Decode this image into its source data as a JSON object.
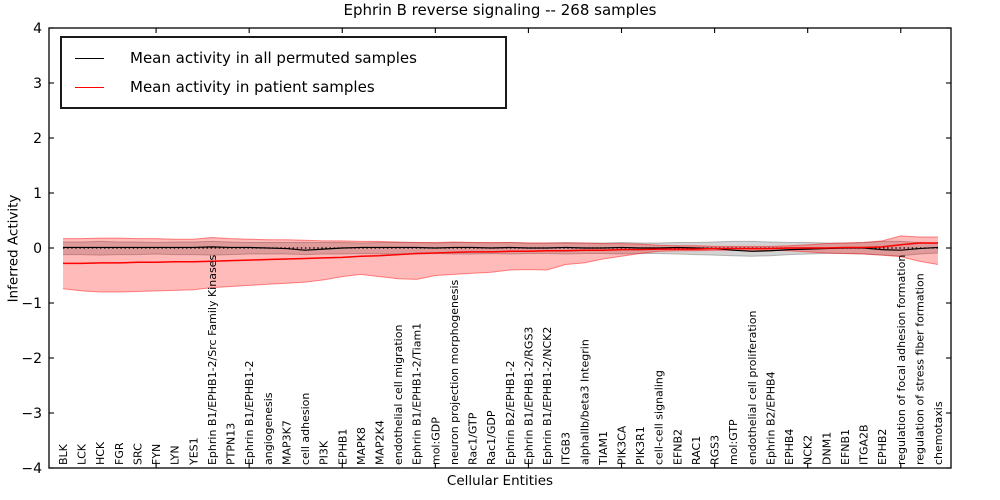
{
  "chart_data": {
    "type": "line",
    "title": "Ephrin B reverse signaling -- 268 samples",
    "xlabel": "Cellular Entities",
    "ylabel": "Inferred Activity",
    "ylim": [
      -4,
      4
    ],
    "yticks": [
      4,
      3,
      2,
      1,
      0,
      -1,
      -2,
      -3,
      -4
    ],
    "ytick_labels": [
      "4",
      "3",
      "2",
      "1",
      "0",
      "−1",
      "−2",
      "−3",
      "−4"
    ],
    "grid": false,
    "legend_position": "upper left",
    "zero_line": {
      "style": "dotted",
      "color": "#000000",
      "value": 0
    },
    "categories": [
      "BLK",
      "LCK",
      "HCK",
      "FGR",
      "SRC",
      "FYN",
      "LYN",
      "YES1",
      "Ephrin B1/EPHB1-2/Src Family Kinases",
      "PTPN13",
      "Ephrin B1/EPHB1-2",
      "angiogenesis",
      "MAP3K7",
      "cell adhesion",
      "PI3K",
      "EPHB1",
      "MAPK8",
      "MAP2K4",
      "endothelial cell migration",
      "Ephrin B1/EPHB1-2/Tiam1",
      "mol:GDP",
      "neuron projection morphogenesis",
      "Rac1/GTP",
      "Rac1/GDP",
      "Ephrin B2/EPHB1-2",
      "Ephrin B1/EPHB1-2/RGS3",
      "Ephrin B1/EPHB1-2/NCK2",
      "ITGB3",
      "alphaIIb/beta3 Integrin",
      "TIAM1",
      "PIK3CA",
      "PIK3R1",
      "cell-cell signaling",
      "EFNB2",
      "RAC1",
      "RGS3",
      "mol:GTP",
      "endothelial cell proliferation",
      "Ephrin B2/EPHB4",
      "EPHB4",
      "NCK2",
      "DNM1",
      "EFNB1",
      "ITGA2B",
      "EPHB2",
      "regulation of focal adhesion formation",
      "regulation of stress fiber formation",
      "chemotaxis"
    ],
    "series": [
      {
        "name": "Mean activity in all permuted samples",
        "color": "#000000",
        "values": [
          0.01,
          0.01,
          0.01,
          0.01,
          0.01,
          0.01,
          0.01,
          0.01,
          0.02,
          0.01,
          0.01,
          0,
          -0.01,
          -0.04,
          -0.02,
          0,
          0.01,
          0.01,
          0.01,
          0.01,
          0,
          0.01,
          0.01,
          0,
          0.01,
          0,
          0,
          0.01,
          0,
          0,
          0.01,
          0,
          0,
          0.01,
          0,
          -0.01,
          -0.04,
          -0.06,
          -0.05,
          -0.03,
          -0.02,
          -0.01,
          0,
          0,
          -0.03,
          -0.04,
          -0.01,
          0.01
        ]
      },
      {
        "name": "Mean activity in patient samples",
        "color": "#ff0000",
        "values": [
          -0.28,
          -0.28,
          -0.27,
          -0.27,
          -0.26,
          -0.26,
          -0.25,
          -0.25,
          -0.24,
          -0.23,
          -0.22,
          -0.21,
          -0.2,
          -0.19,
          -0.18,
          -0.17,
          -0.15,
          -0.14,
          -0.12,
          -0.1,
          -0.09,
          -0.08,
          -0.07,
          -0.07,
          -0.06,
          -0.06,
          -0.05,
          -0.05,
          -0.04,
          -0.04,
          -0.03,
          -0.03,
          -0.02,
          -0.02,
          -0.02,
          -0.01,
          -0.01,
          -0.01,
          -0.01,
          0,
          0,
          0,
          0.01,
          0.01,
          0.02,
          0.06,
          0.09,
          0.09
        ]
      }
    ],
    "bands": [
      {
        "name": "Permuted samples activity range",
        "fill": "rgba(128,128,128,0.35)",
        "edge": "rgba(110,110,110,0.45)",
        "upper": [
          0.11,
          0.11,
          0.12,
          0.11,
          0.11,
          0.1,
          0.11,
          0.11,
          0.12,
          0.11,
          0.1,
          0.1,
          0.1,
          0.1,
          0.1,
          0.1,
          0.09,
          0.1,
          0.1,
          0.1,
          0.09,
          0.1,
          0.1,
          0.09,
          0.1,
          0.09,
          0.09,
          0.1,
          0.09,
          0.09,
          0.1,
          0.09,
          0.09,
          0.1,
          0.1,
          0.11,
          0.12,
          0.12,
          0.11,
          0.1,
          0.1,
          0.09,
          0.09,
          0.1,
          0.12,
          0.12,
          0.1,
          0.08
        ],
        "lower": [
          -0.12,
          -0.12,
          -0.13,
          -0.12,
          -0.12,
          -0.11,
          -0.12,
          -0.12,
          -0.13,
          -0.12,
          -0.11,
          -0.11,
          -0.11,
          -0.12,
          -0.11,
          -0.11,
          -0.1,
          -0.11,
          -0.11,
          -0.11,
          -0.1,
          -0.11,
          -0.11,
          -0.1,
          -0.11,
          -0.1,
          -0.1,
          -0.11,
          -0.1,
          -0.1,
          -0.11,
          -0.1,
          -0.1,
          -0.11,
          -0.12,
          -0.13,
          -0.14,
          -0.15,
          -0.14,
          -0.12,
          -0.11,
          -0.1,
          -0.1,
          -0.11,
          -0.13,
          -0.14,
          -0.11,
          -0.09
        ]
      },
      {
        "name": "Patient samples activity range",
        "fill": "rgba(255,0,0,0.27)",
        "edge": "rgba(255,0,0,0.45)",
        "upper": [
          0.17,
          0.17,
          0.18,
          0.18,
          0.17,
          0.17,
          0.16,
          0.16,
          0.19,
          0.17,
          0.16,
          0.15,
          0.15,
          0.14,
          0.13,
          0.13,
          0.12,
          0.12,
          0.11,
          0.1,
          0.1,
          0.11,
          0.1,
          0.1,
          0.1,
          0.09,
          0.09,
          0.09,
          0.09,
          0.08,
          0.08,
          0.07,
          0.05,
          0.04,
          0.04,
          0.03,
          0.03,
          0.03,
          0.03,
          0.04,
          0.06,
          0.08,
          0.09,
          0.1,
          0.13,
          0.22,
          0.2,
          0.2
        ],
        "lower": [
          -0.74,
          -0.78,
          -0.8,
          -0.8,
          -0.79,
          -0.78,
          -0.77,
          -0.76,
          -0.72,
          -0.7,
          -0.68,
          -0.66,
          -0.64,
          -0.62,
          -0.58,
          -0.52,
          -0.48,
          -0.52,
          -0.56,
          -0.57,
          -0.5,
          -0.48,
          -0.46,
          -0.44,
          -0.4,
          -0.39,
          -0.4,
          -0.3,
          -0.27,
          -0.2,
          -0.15,
          -0.1,
          -0.06,
          -0.05,
          -0.05,
          -0.04,
          -0.04,
          -0.04,
          -0.04,
          -0.05,
          -0.07,
          -0.09,
          -0.1,
          -0.11,
          -0.13,
          -0.16,
          -0.24,
          -0.3
        ]
      }
    ]
  }
}
